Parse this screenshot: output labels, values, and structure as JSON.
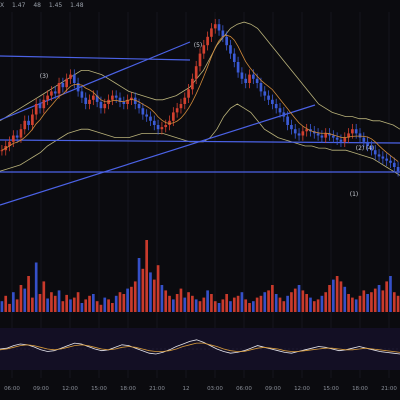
{
  "header": {
    "symbol_fragment": "X",
    "o_value": "1.47",
    "h_value": "48",
    "l_value": "1.45",
    "c_value": "1.48"
  },
  "chart_data": [
    {
      "type": "candlestick",
      "panel": "price",
      "x_ticks": [
        "06:00",
        "09:00",
        "12:00",
        "15:00",
        "18:00",
        "21:00",
        "12",
        "03:00",
        "06:00",
        "09:00",
        "12:00",
        "15:00",
        "18:00",
        "21:00"
      ],
      "wave_labels": [
        "(3)",
        "(5)",
        "(2)",
        "(4)",
        "(1)"
      ],
      "colors": {
        "up": "#d2402f",
        "down": "#3b5bd6",
        "trendline": "#4b62e6",
        "band_upper": "#b9b27a",
        "band_lower": "#b9b27a",
        "ma": "#d18a3a"
      },
      "ylim": [
        0,
        100
      ],
      "closes": [
        38,
        40,
        42,
        45,
        44,
        48,
        52,
        50,
        55,
        60,
        58,
        62,
        64,
        66,
        65,
        70,
        68,
        72,
        74,
        70,
        66,
        63,
        60,
        62,
        64,
        61,
        58,
        60,
        62,
        64,
        63,
        61,
        60,
        62,
        63,
        60,
        58,
        55,
        54,
        52,
        50,
        48,
        49,
        50,
        52,
        56,
        58,
        60,
        63,
        67,
        72,
        78,
        84,
        88,
        92,
        96,
        98,
        95,
        92,
        88,
        84,
        80,
        75,
        72,
        70,
        74,
        72,
        70,
        66,
        64,
        62,
        60,
        58,
        56,
        54,
        50,
        48,
        46,
        45,
        47,
        48,
        47,
        46,
        45,
        44,
        46,
        45,
        44,
        43,
        42,
        44,
        46,
        48,
        46,
        44,
        42,
        40,
        38,
        36,
        35,
        34,
        33,
        32,
        30,
        28
      ],
      "upper_band": [
        52,
        54,
        56,
        58,
        60,
        62,
        64,
        66,
        68,
        70,
        72,
        74,
        76,
        76,
        75,
        74,
        72,
        70,
        68,
        66,
        65,
        64,
        63,
        62,
        62,
        63,
        64,
        66,
        68,
        72,
        76,
        82,
        88,
        92,
        96,
        98,
        99,
        98,
        96,
        92,
        88,
        84,
        80,
        76,
        72,
        68,
        64,
        60,
        58,
        56,
        55,
        54,
        54,
        53,
        53,
        52,
        52,
        51,
        50,
        48
      ],
      "lower_band": [
        28,
        29,
        30,
        31,
        33,
        35,
        37,
        40,
        42,
        44,
        46,
        47,
        48,
        48,
        47,
        46,
        45,
        44,
        44,
        44,
        45,
        46,
        46,
        46,
        46,
        45,
        44,
        43,
        42,
        42,
        42,
        44,
        48,
        54,
        58,
        60,
        58,
        56,
        52,
        48,
        46,
        44,
        43,
        42,
        41,
        40,
        40,
        39,
        39,
        38,
        38,
        38,
        37,
        36,
        35,
        34,
        32,
        30,
        28,
        26
      ]
    },
    {
      "type": "bar",
      "panel": "volume",
      "values": [
        12,
        18,
        9,
        22,
        14,
        30,
        26,
        40,
        16,
        55,
        20,
        34,
        15,
        22,
        18,
        24,
        12,
        19,
        14,
        16,
        22,
        10,
        14,
        18,
        20,
        12,
        8,
        16,
        14,
        10,
        18,
        22,
        20,
        26,
        28,
        34,
        60,
        48,
        80,
        44,
        36,
        52,
        30,
        24,
        18,
        14,
        20,
        26,
        16,
        22,
        18,
        14,
        12,
        16,
        24,
        20,
        12,
        10,
        14,
        20,
        12,
        16,
        18,
        22,
        14,
        10,
        12,
        16,
        18,
        22,
        24,
        30,
        20,
        16,
        12,
        18,
        22,
        26,
        30,
        24,
        20,
        16,
        12,
        14,
        18,
        22,
        30,
        36,
        40,
        34,
        28,
        20,
        16,
        14,
        18,
        24,
        20,
        22,
        26,
        30,
        24,
        34,
        40,
        22,
        18
      ]
    },
    {
      "type": "line",
      "panel": "oscillator",
      "series": [
        {
          "values": [
            50,
            52,
            58,
            62,
            60,
            55,
            48,
            44,
            46,
            52,
            58,
            64,
            62,
            56,
            50,
            46,
            48,
            54,
            60,
            58,
            52,
            46,
            40,
            38,
            42,
            48,
            56,
            62,
            68,
            72,
            66,
            58,
            50,
            44,
            40,
            42,
            46,
            52,
            58,
            54,
            50,
            46,
            42,
            40,
            44,
            48,
            52,
            56,
            54,
            50,
            46,
            48,
            52,
            56,
            52,
            48,
            44,
            42,
            40,
            38
          ]
        },
        {
          "values": [
            48,
            50,
            54,
            58,
            60,
            58,
            54,
            50,
            48,
            50,
            54,
            58,
            60,
            58,
            54,
            50,
            48,
            50,
            54,
            56,
            54,
            50,
            46,
            44,
            44,
            46,
            50,
            56,
            60,
            64,
            64,
            60,
            56,
            50,
            46,
            44,
            44,
            48,
            52,
            54,
            52,
            50,
            46,
            44,
            44,
            46,
            48,
            50,
            52,
            52,
            50,
            48,
            48,
            50,
            52,
            50,
            48,
            46,
            44,
            42
          ]
        }
      ]
    }
  ]
}
